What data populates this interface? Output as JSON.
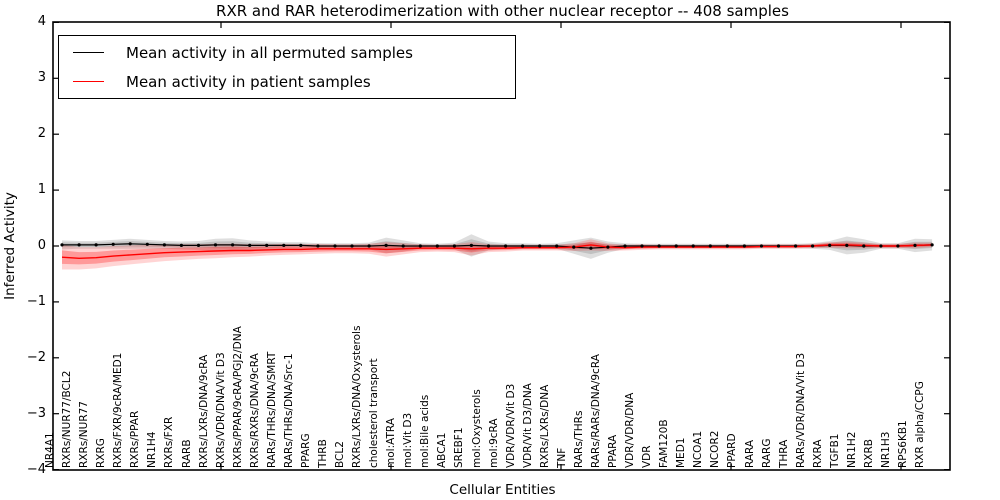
{
  "figure": {
    "kind": "matplotlib-style line chart with uncertainty bands"
  },
  "chart_data": {
    "type": "line",
    "title": "RXR and RAR heterodimerization with other nuclear receptor -- 408 samples",
    "xlabel": "Cellular Entities",
    "ylabel": "Inferred Activity",
    "ylim": [
      -4,
      4
    ],
    "yticks": [
      4,
      3,
      2,
      1,
      0,
      -1,
      -2,
      -3,
      -4
    ],
    "grid": false,
    "legend_position": "upper left",
    "categories": [
      "NR4A1",
      "RXRs/NUR77/BCL2",
      "RXRs/NUR77",
      "RXRG",
      "RXRs/FXR/9cRA/MED1",
      "RXRs/PPAR",
      "NR1H4",
      "RXRs/FXR",
      "RARB",
      "RXRs/LXRs/DNA/9cRA",
      "RXRs/VDR/DNA/Vit D3",
      "RXRs/PPAR/9cRA/PGJ2/DNA",
      "RXRs/RXRs/DNA/9cRA",
      "RARs/THRs/DNA/SMRT",
      "RARs/THRs/DNA/Src-1",
      "PPARG",
      "THRB",
      "BCL2",
      "RXRs/LXRs/DNA/Oxysterols",
      "cholesterol transport",
      "mol:ATRA",
      "mol:Vit D3",
      "mol:Bile acids",
      "ABCA1",
      "SREBF1",
      "mol:Oxysterols",
      "mol:9cRA",
      "VDR/VDR/Vit D3",
      "VDR/Vit D3/DNA",
      "RXRs/LXRs/DNA",
      "TNF",
      "RARs/THRs",
      "RARs/RARs/DNA/9cRA",
      "PPARA",
      "VDR/VDR/DNA",
      "VDR",
      "FAM120B",
      "MED1",
      "NCOA1",
      "NCOR2",
      "PPARD",
      "RARA",
      "RARG",
      "THRA",
      "RARs/VDR/DNA/Vit D3",
      "RXRA",
      "TGFB1",
      "NR1H2",
      "RXRB",
      "NR1H3",
      "RPS6KB1",
      "RXR alpha/CCPG"
    ],
    "series": [
      {
        "name": "Mean activity in all permuted samples",
        "color": "#000000",
        "markers": true,
        "values": [
          0.02,
          0.02,
          0.02,
          0.03,
          0.04,
          0.03,
          0.02,
          0.01,
          0.01,
          0.02,
          0.02,
          0.01,
          0.01,
          0.01,
          0.01,
          0.0,
          0.0,
          0.0,
          0.0,
          0.01,
          0.0,
          0.0,
          0.0,
          0.0,
          0.01,
          0.0,
          0.0,
          0.0,
          0.0,
          0.0,
          -0.02,
          -0.04,
          -0.02,
          0.0,
          0.0,
          0.0,
          0.0,
          0.0,
          0.0,
          0.0,
          0.0,
          0.0,
          0.0,
          0.0,
          0.0,
          0.01,
          0.01,
          0.0,
          0.0,
          0.0,
          0.01,
          0.02
        ],
        "band_halfwidth": [
          0.08,
          0.07,
          0.07,
          0.08,
          0.09,
          0.08,
          0.07,
          0.07,
          0.08,
          0.11,
          0.12,
          0.09,
          0.07,
          0.06,
          0.06,
          0.05,
          0.05,
          0.05,
          0.06,
          0.14,
          0.1,
          0.05,
          0.04,
          0.06,
          0.2,
          0.08,
          0.05,
          0.05,
          0.04,
          0.05,
          0.12,
          0.19,
          0.1,
          0.05,
          0.04,
          0.04,
          0.04,
          0.04,
          0.04,
          0.04,
          0.04,
          0.04,
          0.04,
          0.04,
          0.05,
          0.08,
          0.16,
          0.12,
          0.05,
          0.05,
          0.12,
          0.1
        ]
      },
      {
        "name": "Mean activity in patient samples",
        "color": "#ff0000",
        "markers": false,
        "values": [
          -0.2,
          -0.22,
          -0.21,
          -0.18,
          -0.16,
          -0.14,
          -0.12,
          -0.11,
          -0.1,
          -0.09,
          -0.08,
          -0.08,
          -0.07,
          -0.06,
          -0.06,
          -0.05,
          -0.05,
          -0.05,
          -0.05,
          -0.06,
          -0.05,
          -0.04,
          -0.04,
          -0.04,
          -0.05,
          -0.04,
          -0.04,
          -0.03,
          -0.03,
          -0.03,
          -0.02,
          0.02,
          -0.02,
          -0.03,
          -0.02,
          -0.02,
          -0.02,
          -0.02,
          -0.02,
          -0.02,
          -0.02,
          -0.01,
          -0.01,
          -0.01,
          0.0,
          0.02,
          0.02,
          0.01,
          0.0,
          0.0,
          0.01,
          0.02
        ],
        "band_halfwidth": [
          0.22,
          0.2,
          0.19,
          0.18,
          0.17,
          0.16,
          0.15,
          0.14,
          0.13,
          0.13,
          0.12,
          0.11,
          0.1,
          0.1,
          0.09,
          0.09,
          0.08,
          0.08,
          0.09,
          0.13,
          0.1,
          0.07,
          0.06,
          0.07,
          0.12,
          0.07,
          0.06,
          0.05,
          0.05,
          0.05,
          0.07,
          0.1,
          0.07,
          0.05,
          0.05,
          0.04,
          0.04,
          0.04,
          0.04,
          0.04,
          0.04,
          0.04,
          0.04,
          0.04,
          0.04,
          0.05,
          0.06,
          0.05,
          0.04,
          0.04,
          0.05,
          0.04
        ]
      }
    ]
  }
}
